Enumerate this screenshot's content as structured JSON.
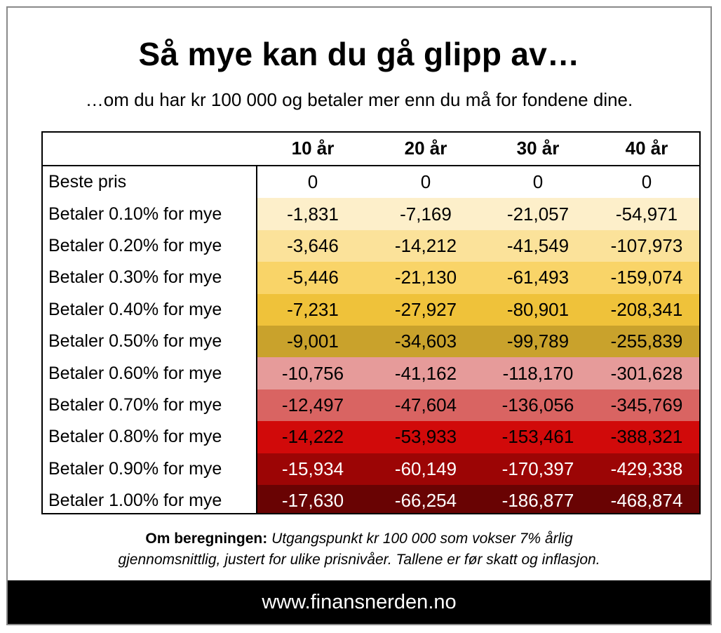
{
  "title": "Så mye kan du gå glipp av…",
  "subtitle": "…om du har kr 100 000 og betaler mer enn du må for fondene dine.",
  "note": {
    "bold": "Om beregningen:",
    "line1": "Utgangspunkt kr 100 000 som vokser 7% årlig",
    "line2": "gjennomsnittlig, justert for ulike prisnivåer. Tallene er før skatt og inflasjon."
  },
  "footer": "www.finansnerden.no",
  "chart_data": {
    "type": "table",
    "columns": [
      "10 år",
      "20 år",
      "30 år",
      "40 år"
    ],
    "rows": [
      {
        "label": "Beste pris",
        "values": [
          "0",
          "0",
          "0",
          "0"
        ],
        "bg": "#ffffff",
        "fg": "#000000"
      },
      {
        "label": "Betaler 0.10% for mye",
        "values": [
          "-1,831",
          "-7,169",
          "-21,057",
          "-54,971"
        ],
        "bg": "#fdefca",
        "fg": "#000000"
      },
      {
        "label": "Betaler 0.20% for mye",
        "values": [
          "-3,646",
          "-14,212",
          "-41,549",
          "-107,973"
        ],
        "bg": "#fbe29a",
        "fg": "#000000"
      },
      {
        "label": "Betaler 0.30% for mye",
        "values": [
          "-5,446",
          "-21,130",
          "-61,493",
          "-159,074"
        ],
        "bg": "#f9d468",
        "fg": "#000000"
      },
      {
        "label": "Betaler 0.40% for mye",
        "values": [
          "-7,231",
          "-27,927",
          "-80,901",
          "-208,341"
        ],
        "bg": "#efc23a",
        "fg": "#000000"
      },
      {
        "label": "Betaler 0.50% for mye",
        "values": [
          "-9,001",
          "-34,603",
          "-99,789",
          "-255,839"
        ],
        "bg": "#c9a22c",
        "fg": "#000000"
      },
      {
        "label": "Betaler 0.60% for mye",
        "values": [
          "-10,756",
          "-41,162",
          "-118,170",
          "-301,628"
        ],
        "bg": "#e69b9a",
        "fg": "#000000"
      },
      {
        "label": "Betaler 0.70% for mye",
        "values": [
          "-12,497",
          "-47,604",
          "-136,056",
          "-345,769"
        ],
        "bg": "#d96462",
        "fg": "#000000"
      },
      {
        "label": "Betaler 0.80% for mye",
        "values": [
          "-14,222",
          "-53,933",
          "-153,461",
          "-388,321"
        ],
        "bg": "#d10a0a",
        "fg": "#000000"
      },
      {
        "label": "Betaler 0.90% for mye",
        "values": [
          "-15,934",
          "-60,149",
          "-170,397",
          "-429,338"
        ],
        "bg": "#9c0505",
        "fg": "#ffffff"
      },
      {
        "label": "Betaler 1.00% for mye",
        "values": [
          "-17,630",
          "-66,254",
          "-186,877",
          "-468,874"
        ],
        "bg": "#690303",
        "fg": "#ffffff"
      }
    ]
  }
}
